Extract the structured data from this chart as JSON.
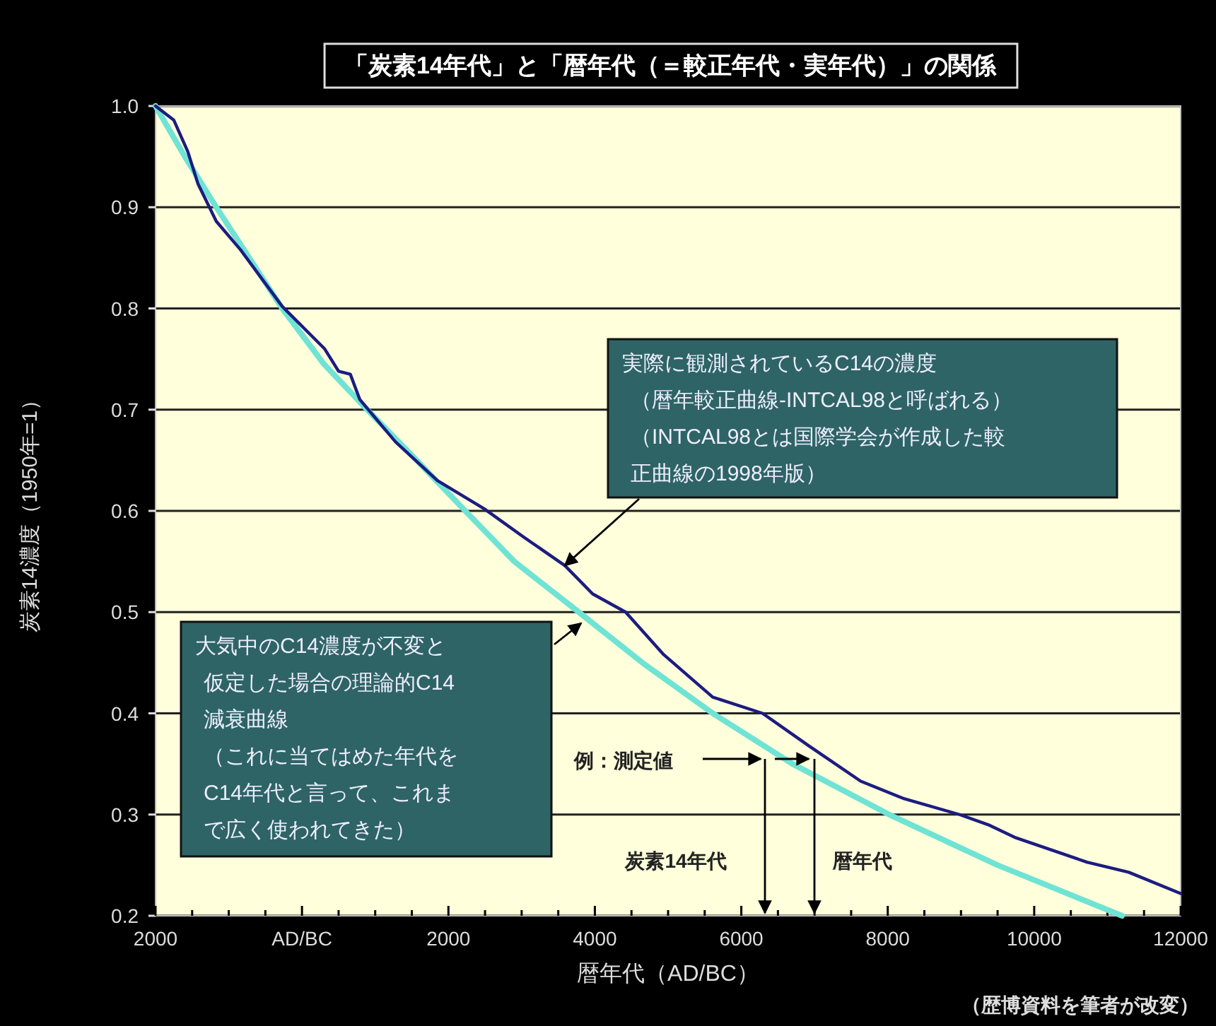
{
  "chart_data": {
    "type": "line",
    "title": "「炭素14年代」と「暦年代（＝較正年代・実年代）」の関係",
    "xlabel": "暦年代（AD/BC）",
    "ylabel": "炭素14濃度（1950年=1）",
    "xlim": [
      -2000,
      12000
    ],
    "ylim": [
      0.2,
      1.0
    ],
    "xticks": [
      {
        "value": -2000,
        "label": "2000"
      },
      {
        "value": -1500,
        "label": null
      },
      {
        "value": -1000,
        "label": null
      },
      {
        "value": -500,
        "label": null
      },
      {
        "value": 0,
        "label": "AD/BC"
      },
      {
        "value": 500,
        "label": null
      },
      {
        "value": 1000,
        "label": null
      },
      {
        "value": 1500,
        "label": null
      },
      2000,
      {
        "value": 2500,
        "label": null
      },
      {
        "value": 3000,
        "label": null
      },
      {
        "value": 3500,
        "label": null
      },
      4000,
      {
        "value": 4500,
        "label": null
      },
      {
        "value": 5000,
        "label": null
      },
      {
        "value": 5500,
        "label": null
      },
      6000,
      {
        "value": 6500,
        "label": null
      },
      {
        "value": 7000,
        "label": null
      },
      {
        "value": 7500,
        "label": null
      },
      8000,
      {
        "value": 8500,
        "label": null
      },
      {
        "value": 9000,
        "label": null
      },
      {
        "value": 9500,
        "label": null
      },
      10000,
      {
        "value": 10500,
        "label": null
      },
      {
        "value": 11000,
        "label": null
      },
      {
        "value": 11500,
        "label": null
      },
      12000
    ],
    "yticks": [
      {
        "value": 0.2,
        "label": "0.2"
      },
      {
        "value": 0.3,
        "label": "0.3"
      },
      {
        "value": 0.4,
        "label": "0.4"
      },
      {
        "value": 0.5,
        "label": "0.5"
      },
      {
        "value": 0.6,
        "label": "0.6"
      },
      {
        "value": 0.7,
        "label": "0.7"
      },
      {
        "value": 0.8,
        "label": "0.8"
      },
      {
        "value": 0.9,
        "label": "0.9"
      },
      {
        "value": 1.0,
        "label": "1.0"
      }
    ],
    "grid": "y",
    "line_style": "solid",
    "marker": "none",
    "series": [
      {
        "color": "#6fe3d4",
        "x": [
          -2000,
          -1600,
          -1170,
          -270,
          300,
          890,
          1500,
          2230,
          2900,
          3780,
          4650,
          5610,
          6700,
          8020,
          9500,
          11200
        ],
        "values": [
          1.0,
          0.95,
          0.9,
          0.8,
          0.745,
          0.7,
          0.655,
          0.6,
          0.55,
          0.5,
          0.45,
          0.4,
          0.35,
          0.3,
          0.25,
          0.2
        ]
      },
      {
        "color": "#1c1c80",
        "x": [
          -2000,
          -1750,
          -1560,
          -1420,
          -1170,
          -840,
          -270,
          310,
          500,
          660,
          790,
          1280,
          1850,
          2490,
          3010,
          3590,
          3970,
          4420,
          4940,
          5610,
          6290,
          6920,
          7630,
          8210,
          8980,
          9370,
          9750,
          10720,
          11290,
          12000
        ],
        "values": [
          1.0,
          0.986,
          0.955,
          0.923,
          0.886,
          0.858,
          0.802,
          0.76,
          0.738,
          0.735,
          0.71,
          0.668,
          0.63,
          0.602,
          0.575,
          0.546,
          0.518,
          0.5,
          0.458,
          0.416,
          0.4,
          0.368,
          0.333,
          0.316,
          0.3,
          0.29,
          0.277,
          0.253,
          0.243,
          0.222
        ]
      }
    ],
    "annotations": [
      {
        "text": "実際に観測されているC14の濃度（暦年較正曲線-INTCAL98と呼ばれる）（INTCAL98とは国際学会が作成した較正曲線の1998年版）",
        "x": 3590,
        "y": 0.546
      },
      "大気中のC14濃度が不変と仮定した場合の理論的C14減衰曲線（これに当てはめた年代をC14年代と言って、これまで広く使われてきた）",
      "例：測定値",
      "炭素14年代",
      "暦年代",
      "（歴博資料を筆者が改変）"
    ]
  }
}
